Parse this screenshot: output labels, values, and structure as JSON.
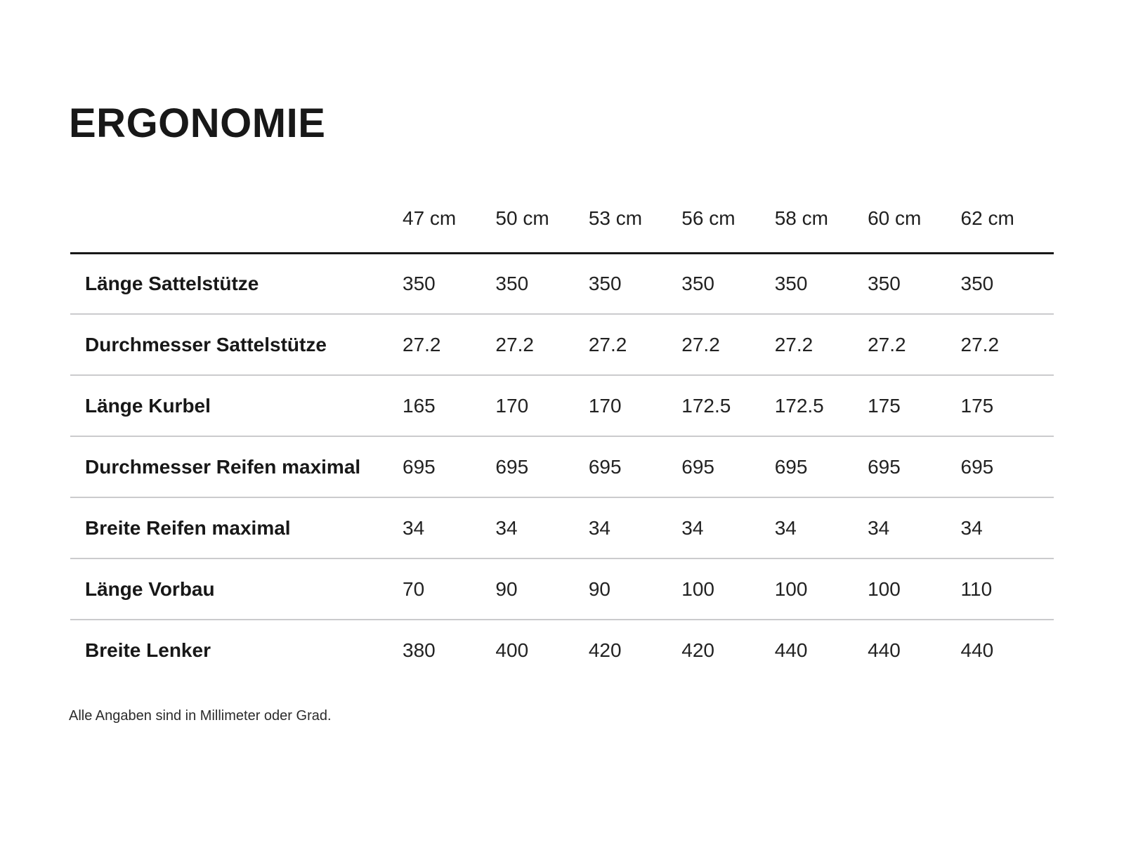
{
  "page": {
    "title": "ERGONOMIE",
    "footnote": "Alle Angaben sind in Millimeter oder Grad."
  },
  "colors": {
    "background": "#ffffff",
    "text": "#1a1a1a",
    "header_rule": "#181818",
    "row_separator": "#cbcbcd"
  },
  "table": {
    "corner_label": "",
    "columns": [
      "47 cm",
      "50 cm",
      "53 cm",
      "56 cm",
      "58 cm",
      "60 cm",
      "62 cm"
    ],
    "rows": [
      {
        "label": "Länge Sattelstütze",
        "values": [
          "350",
          "350",
          "350",
          "350",
          "350",
          "350",
          "350"
        ]
      },
      {
        "label": "Durchmesser Sattelstütze",
        "values": [
          "27.2",
          "27.2",
          "27.2",
          "27.2",
          "27.2",
          "27.2",
          "27.2"
        ]
      },
      {
        "label": "Länge Kurbel",
        "values": [
          "165",
          "170",
          "170",
          "172.5",
          "172.5",
          "175",
          "175"
        ]
      },
      {
        "label": "Durchmesser Reifen maximal",
        "values": [
          "695",
          "695",
          "695",
          "695",
          "695",
          "695",
          "695"
        ]
      },
      {
        "label": "Breite Reifen maximal",
        "values": [
          "34",
          "34",
          "34",
          "34",
          "34",
          "34",
          "34"
        ]
      },
      {
        "label": "Länge Vorbau",
        "values": [
          "70",
          "90",
          "90",
          "100",
          "100",
          "100",
          "110"
        ]
      },
      {
        "label": "Breite Lenker",
        "values": [
          "380",
          "400",
          "420",
          "420",
          "440",
          "440",
          "440"
        ]
      }
    ]
  }
}
